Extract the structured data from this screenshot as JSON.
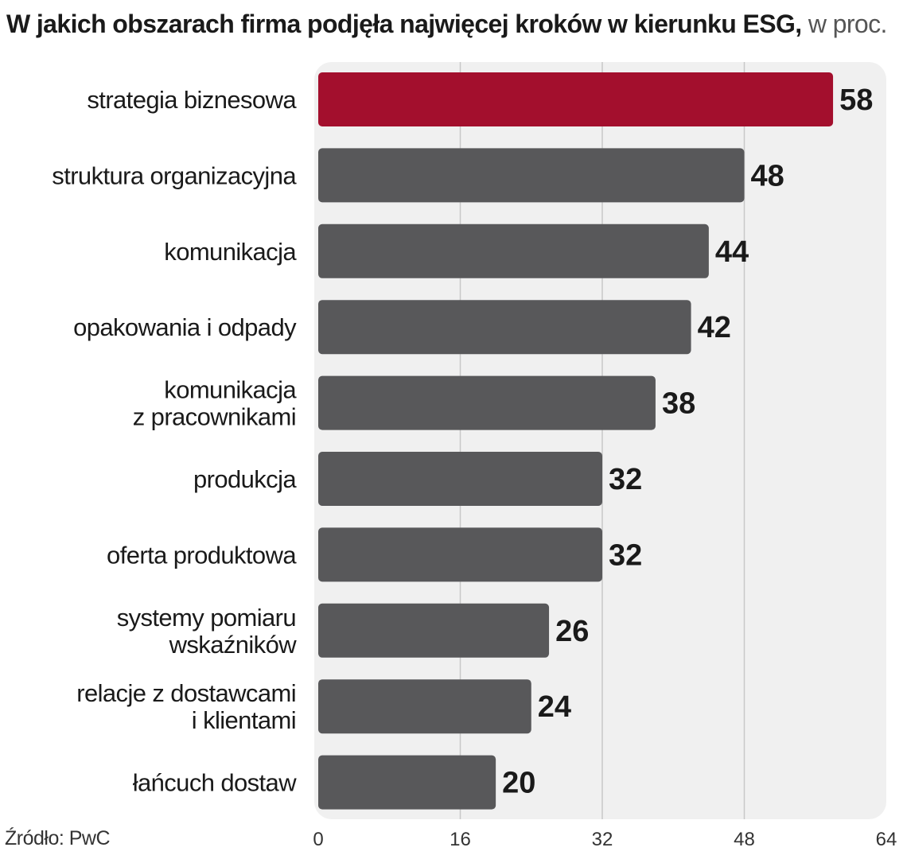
{
  "header": {
    "title": "W jakich obszarach firma podjęła najwięcej kroków w kierunku ESG,",
    "unit": " w proc."
  },
  "source": "Źródło: PwC",
  "chart_data": {
    "type": "bar",
    "orientation": "horizontal",
    "title": "W jakich obszarach firma podjęła najwięcej kroków w kierunku ESG, w proc.",
    "categories": [
      [
        "strategia biznesowa"
      ],
      [
        "struktura organizacyjna"
      ],
      [
        "komunikacja"
      ],
      [
        "opakowania i odpady"
      ],
      [
        "komunikacja",
        "z pracownikami"
      ],
      [
        "produkcja"
      ],
      [
        "oferta produktowa"
      ],
      [
        "systemy pomiaru",
        "wskaźników"
      ],
      [
        "relacje z dostawcami",
        "i klientami"
      ],
      [
        "łańcuch dostaw"
      ]
    ],
    "values": [
      58,
      48,
      44,
      42,
      38,
      32,
      32,
      26,
      24,
      20
    ],
    "xlim": [
      0,
      64
    ],
    "xticks": [
      0,
      16,
      32,
      48,
      64
    ],
    "grid": true,
    "colors": {
      "highlight": "#a30f2d",
      "bar": "#58585a",
      "plot_background": "#f0f0f0",
      "grid": "#c8c8c8"
    }
  }
}
